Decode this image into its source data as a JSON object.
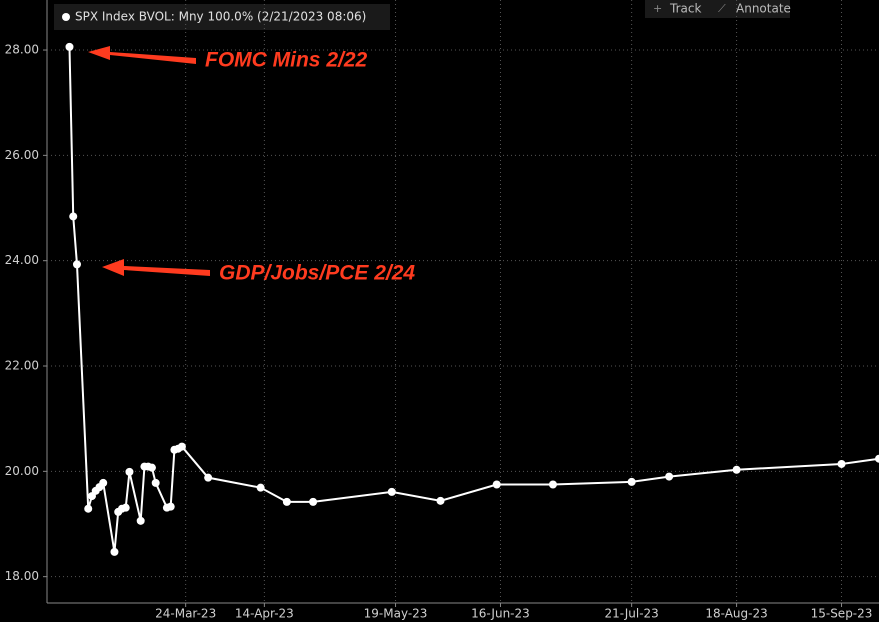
{
  "chart_data": {
    "type": "line",
    "x": [
      "2023-02-21",
      "2023-02-22",
      "2023-02-23",
      "2023-02-26",
      "2023-02-27",
      "2023-02-28",
      "2023-03-01",
      "2023-03-02",
      "2023-03-05",
      "2023-03-06",
      "2023-03-07",
      "2023-03-08",
      "2023-03-09",
      "2023-03-12",
      "2023-03-13",
      "2023-03-14",
      "2023-03-15",
      "2023-03-16",
      "2023-03-19",
      "2023-03-20",
      "2023-03-21",
      "2023-03-22",
      "2023-03-23",
      "2023-03-30",
      "2023-04-13",
      "2023-04-20",
      "2023-04-27",
      "2023-05-18",
      "2023-05-31",
      "2023-06-15",
      "2023-06-30",
      "2023-07-21",
      "2023-07-31",
      "2023-08-18",
      "2023-09-15",
      "2023-09-25"
    ],
    "series": [
      {
        "name": "SPX Index BVOL: Mny 100.0% (2/21/2023 08:06)",
        "color": "#ffffff",
        "values": [
          28.06,
          24.84,
          23.93,
          19.29,
          19.53,
          19.63,
          19.7,
          19.78,
          18.47,
          19.23,
          19.29,
          19.31,
          19.99,
          19.06,
          20.09,
          20.09,
          20.07,
          19.78,
          19.31,
          19.33,
          20.41,
          20.43,
          20.47,
          19.88,
          19.69,
          19.42,
          19.42,
          19.61,
          19.44,
          19.75,
          19.75,
          19.8,
          19.9,
          20.03,
          20.14,
          20.24
        ]
      }
    ],
    "xlim": [
      "2023-02-15",
      "2023-09-25"
    ],
    "xticks": [
      {
        "value": "2023-03-24",
        "label": "24-Mar-23"
      },
      {
        "value": "2023-04-14",
        "label": "14-Apr-23"
      },
      {
        "value": "2023-05-19",
        "label": "19-May-23"
      },
      {
        "value": "2023-06-16",
        "label": "16-Jun-23"
      },
      {
        "value": "2023-07-21",
        "label": "21-Jul-23"
      },
      {
        "value": "2023-08-18",
        "label": "18-Aug-23"
      },
      {
        "value": "2023-09-15",
        "label": "15-Sep-23"
      }
    ],
    "ylim": [
      17.5,
      28.95
    ],
    "yticks": [
      {
        "value": 18,
        "label": "18.00"
      },
      {
        "value": 20,
        "label": "20.00"
      },
      {
        "value": 22,
        "label": "22.00"
      },
      {
        "value": 24,
        "label": "24.00"
      },
      {
        "value": 26,
        "label": "26.00"
      },
      {
        "value": 28,
        "label": "28.00"
      }
    ],
    "grid": true,
    "annotations": [
      "FOMC Mins 2/22",
      "GDP/Jobs/PCE 2/24"
    ]
  },
  "toolbar": {
    "track": "Track",
    "annotate": "Annotate"
  }
}
